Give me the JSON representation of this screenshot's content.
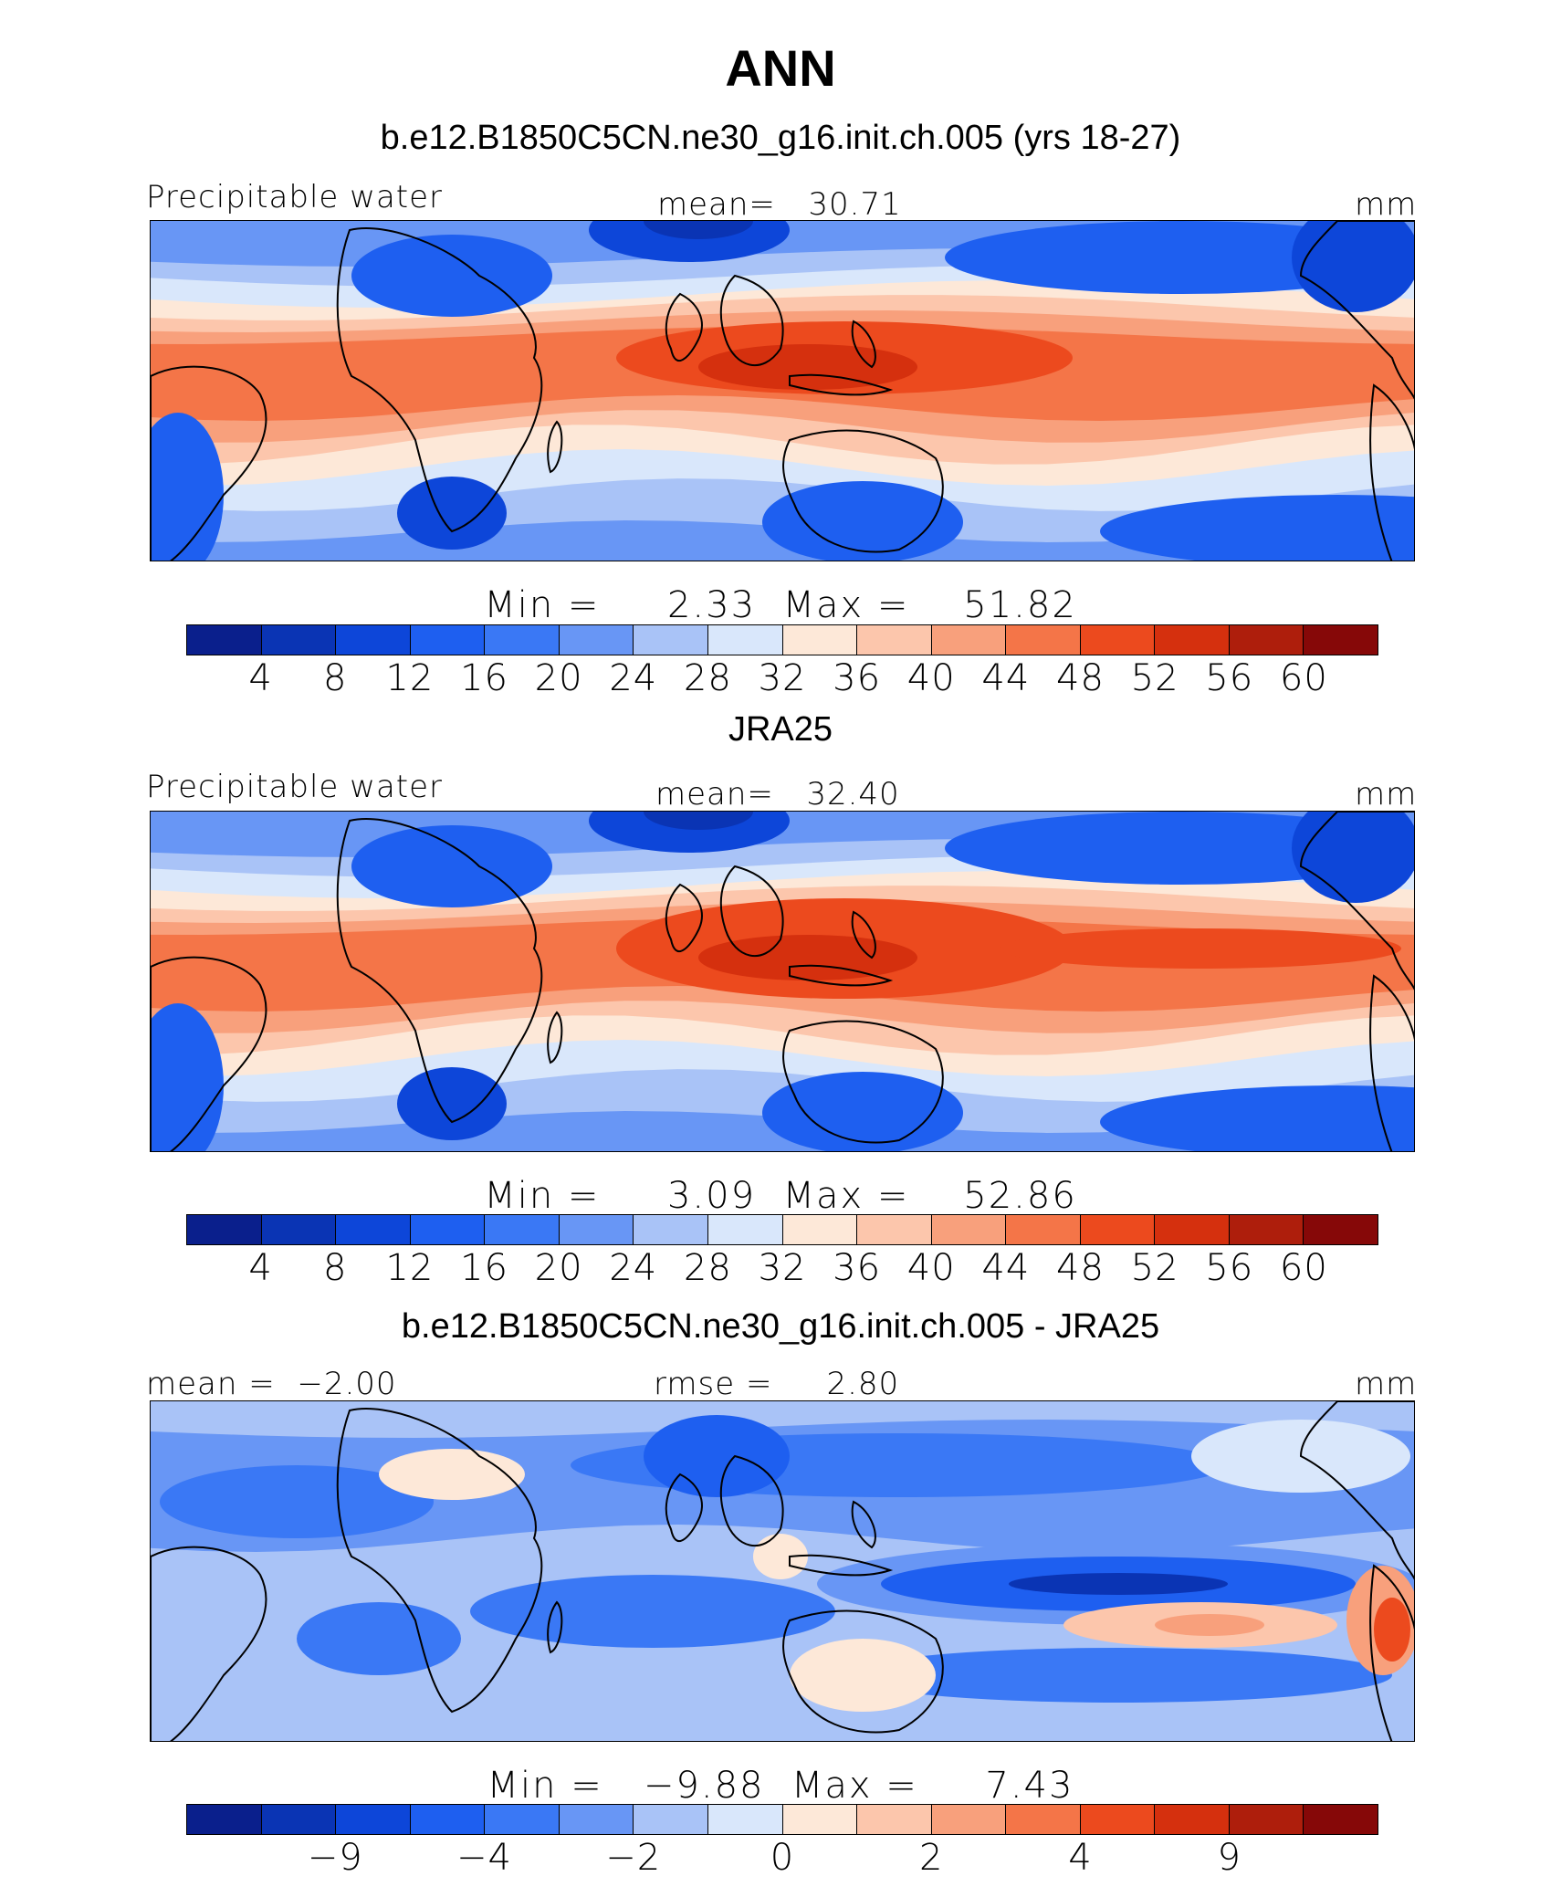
{
  "figure": {
    "title": "ANN"
  },
  "palette": [
    "#0a1f8c",
    "#0a34b4",
    "#0d46d9",
    "#1e5ff0",
    "#3a78f5",
    "#6896f5",
    "#a9c3f7",
    "#d9e7fb",
    "#fde8d8",
    "#fcc6ac",
    "#f8a07c",
    "#f47548",
    "#ec4a1e",
    "#d5300e",
    "#ae1e0c",
    "#860808"
  ],
  "chart_data": [
    {
      "type": "heatmap",
      "title": "b.e12.B1850C5CN.ne30_g16.init.ch.005 (yrs 18-27)",
      "left_label": "Precipitable water",
      "center_label": "mean=   30.71",
      "units": "mm",
      "minmax": "Min =     2.33  Max =    51.82",
      "min": 2.33,
      "max": 51.82,
      "mean": 30.71,
      "colorbar_ticks": [
        "4",
        "8",
        "12",
        "16",
        "20",
        "24",
        "28",
        "32",
        "36",
        "40",
        "44",
        "48",
        "52",
        "56",
        "60"
      ]
    },
    {
      "type": "heatmap",
      "title": "JRA25",
      "left_label": "Precipitable water",
      "center_label": "mean=   32.40",
      "units": "mm",
      "minmax": "Min =     3.09  Max =    52.86",
      "min": 3.09,
      "max": 52.86,
      "mean": 32.4,
      "colorbar_ticks": [
        "4",
        "8",
        "12",
        "16",
        "20",
        "24",
        "28",
        "32",
        "36",
        "40",
        "44",
        "48",
        "52",
        "56",
        "60"
      ]
    },
    {
      "type": "heatmap",
      "title": "b.e12.B1850C5CN.ne30_g16.init.ch.005 - JRA25",
      "left_label": "mean =  −2.00",
      "center_label": "rmse =     2.80",
      "units": "mm",
      "minmax": "Min =   −9.88  Max =     7.43",
      "min": -9.88,
      "max": 7.43,
      "mean": -2.0,
      "rmse": 2.8,
      "colorbar_ticks": [
        "−9",
        "−4",
        "−2",
        "0",
        "2",
        "4",
        "9"
      ]
    }
  ]
}
